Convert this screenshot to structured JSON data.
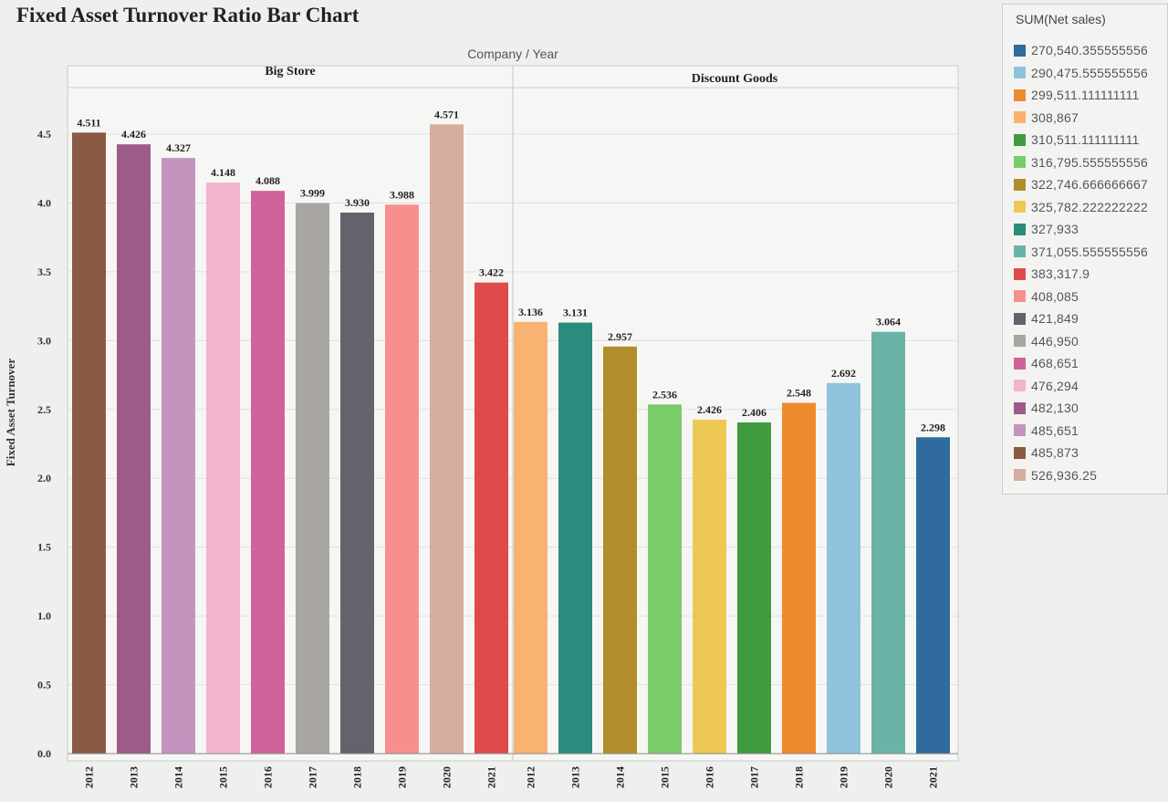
{
  "page_title": "Fixed Asset Turnover Ratio Bar Chart",
  "chart_data": {
    "type": "bar",
    "title": "Fixed Asset Turnover Ratio Bar Chart",
    "column_header": "Company / Year",
    "ylabel": "Fixed Asset Turnover",
    "ylim": [
      0,
      4.7
    ],
    "yticks": [
      "0.0",
      "0.5",
      "1.0",
      "1.5",
      "2.0",
      "2.5",
      "3.0",
      "3.5",
      "4.0",
      "4.5"
    ],
    "grid": true,
    "legend_placement": "right",
    "groups": [
      {
        "name": "Big Store",
        "bars": [
          {
            "year": "2012",
            "value": 4.511,
            "label": "4.511",
            "net_sales": "485,873",
            "color": "#8a5a44"
          },
          {
            "year": "2013",
            "value": 4.426,
            "label": "4.426",
            "net_sales": "482,130",
            "color": "#9c5b89"
          },
          {
            "year": "2014",
            "value": 4.327,
            "label": "4.327",
            "net_sales": "485,651",
            "color": "#c493be"
          },
          {
            "year": "2015",
            "value": 4.148,
            "label": "4.148",
            "net_sales": "476,294",
            "color": "#f2b3cd"
          },
          {
            "year": "2016",
            "value": 4.088,
            "label": "4.088",
            "net_sales": "468,651",
            "color": "#d0629a"
          },
          {
            "year": "2017",
            "value": 3.999,
            "label": "3.999",
            "net_sales": "446,950",
            "color": "#a8a5a3"
          },
          {
            "year": "2018",
            "value": 3.93,
            "label": "3.930",
            "net_sales": "421,849",
            "color": "#64626b"
          },
          {
            "year": "2019",
            "value": 3.988,
            "label": "3.988",
            "net_sales": "408,085",
            "color": "#f88f8f"
          },
          {
            "year": "2020",
            "value": 4.571,
            "label": "4.571",
            "net_sales": "526,936.25",
            "color": "#d6ad9f"
          },
          {
            "year": "2021",
            "value": 3.422,
            "label": "3.422",
            "net_sales": "383,317.9",
            "color": "#de4b4d"
          }
        ]
      },
      {
        "name": "Discount Goods",
        "bars": [
          {
            "year": "2012",
            "value": 3.136,
            "label": "3.136",
            "net_sales": "308,867",
            "color": "#f8b373"
          },
          {
            "year": "2013",
            "value": 3.131,
            "label": "3.131",
            "net_sales": "327,933",
            "color": "#2a8c7c"
          },
          {
            "year": "2014",
            "value": 2.957,
            "label": "2.957",
            "net_sales": "322,746.666666667",
            "color": "#b18d2c"
          },
          {
            "year": "2015",
            "value": 2.536,
            "label": "2.536",
            "net_sales": "316,795.555555556",
            "color": "#7acb6a"
          },
          {
            "year": "2016",
            "value": 2.426,
            "label": "2.426",
            "net_sales": "325,782.222222222",
            "color": "#edc855"
          },
          {
            "year": "2017",
            "value": 2.406,
            "label": "2.406",
            "net_sales": "310,511.111111111",
            "color": "#3f9b3e"
          },
          {
            "year": "2018",
            "value": 2.548,
            "label": "2.548",
            "net_sales": "299,511.111111111",
            "color": "#ef8a2e"
          },
          {
            "year": "2019",
            "value": 2.692,
            "label": "2.692",
            "net_sales": "290,475.555555556",
            "color": "#8fc3dd"
          },
          {
            "year": "2020",
            "value": 3.064,
            "label": "3.064",
            "net_sales": "371,055.555555556",
            "color": "#6bb3a8"
          },
          {
            "year": "2021",
            "value": 2.298,
            "label": "2.298",
            "net_sales": "270,540.355555556",
            "color": "#2f6b9c"
          }
        ]
      }
    ]
  },
  "legend": {
    "title": "SUM(Net sales)",
    "items": [
      {
        "label": "270,540.355555556",
        "color": "#2f6b9c"
      },
      {
        "label": "290,475.555555556",
        "color": "#8fc3dd"
      },
      {
        "label": "299,511.111111111",
        "color": "#ef8a2e"
      },
      {
        "label": "308,867",
        "color": "#f8b373"
      },
      {
        "label": "310,511.111111111",
        "color": "#3f9b3e"
      },
      {
        "label": "316,795.555555556",
        "color": "#7acb6a"
      },
      {
        "label": "322,746.666666667",
        "color": "#b18d2c"
      },
      {
        "label": "325,782.222222222",
        "color": "#edc855"
      },
      {
        "label": "327,933",
        "color": "#2a8c7c"
      },
      {
        "label": "371,055.555555556",
        "color": "#6bb3a8"
      },
      {
        "label": "383,317.9",
        "color": "#de4b4d"
      },
      {
        "label": "408,085",
        "color": "#f88f8f"
      },
      {
        "label": "421,849",
        "color": "#64626b"
      },
      {
        "label": "446,950",
        "color": "#a8a5a3"
      },
      {
        "label": "468,651",
        "color": "#d0629a"
      },
      {
        "label": "476,294",
        "color": "#f2b3cd"
      },
      {
        "label": "482,130",
        "color": "#9c5b89"
      },
      {
        "label": "485,651",
        "color": "#c493be"
      },
      {
        "label": "485,873",
        "color": "#8a5a44"
      },
      {
        "label": "526,936.25",
        "color": "#d6ad9f"
      }
    ]
  }
}
